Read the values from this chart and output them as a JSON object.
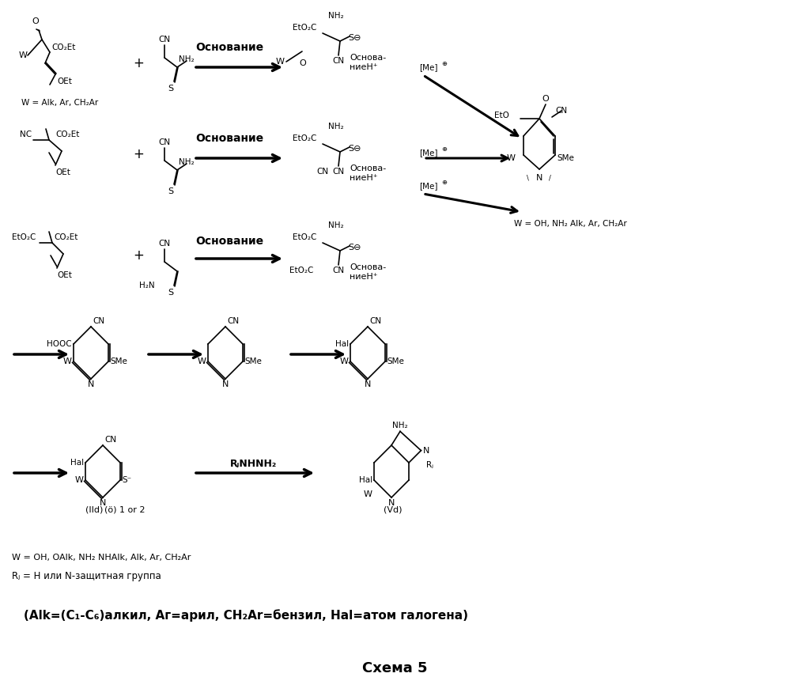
{
  "title": "Схема 5",
  "background": "#ffffff",
  "fig_width": 9.99,
  "fig_height": 8.8,
  "dpi": 100,
  "footnote": "(Alk=(C₁-C₆)алкил, Аг=арил, CH₂Ar=бензил, Hal=атом галогена)",
  "footnote2": "W = OH, OAlk, NH₂ NHAlk, Alk, Ar, CH₂Ar",
  "footnote3": "Rⱼ = H или N-защитная группа",
  "osnov": "Основание",
  "osnova_nie": "Основа-\nниеH⁺",
  "me_plus": "[Me]⁺",
  "w_alk": "W = Alk, Ar, CH₂Ar",
  "w_oh": "W = OH, NH₂ Alk, Ar, CH₂Ar",
  "iid_label": "(IId)",
  "vd_label": "(Vd)",
  "or12": "1 or 2",
  "rj_nhnh2": "RⱼNHNH₂"
}
